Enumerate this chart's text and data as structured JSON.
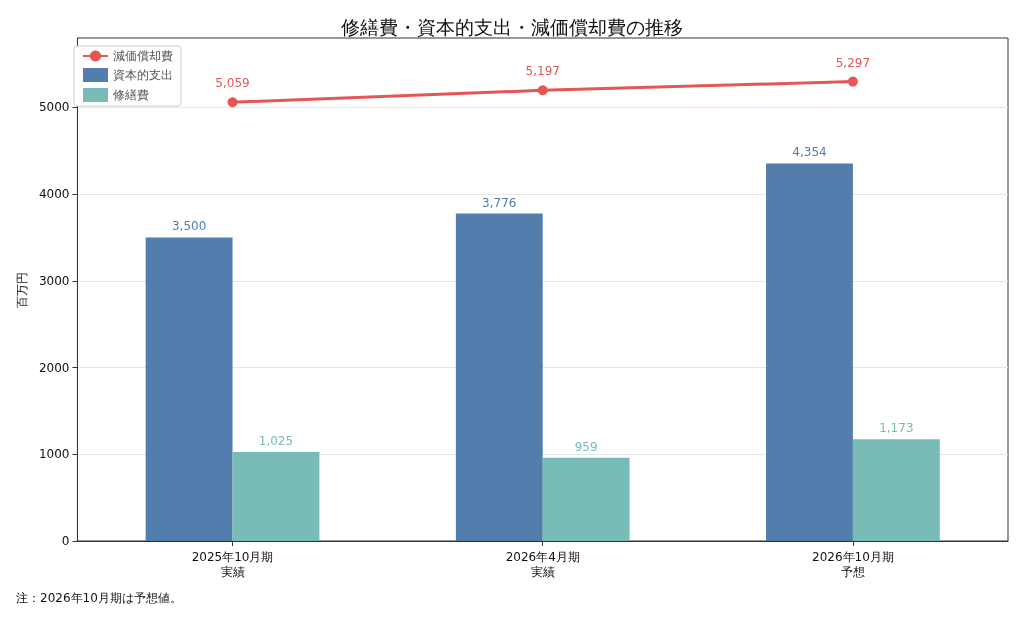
{
  "chart_data": {
    "type": "bar",
    "title": "修繕費・資本的支出・減価償却費の推移",
    "ylabel": "百万円",
    "categories": [
      "2025年10月期実績",
      "2026年4月期実績",
      "2026年10月期予想"
    ],
    "series": [
      {
        "name": "減価償却費",
        "type": "line",
        "color": "#e45756",
        "values": [
          5059,
          5197,
          5297
        ],
        "value_labels": [
          "5,059",
          "5,197",
          "5,297"
        ]
      },
      {
        "name": "資本的支出",
        "color": "#4a76a8",
        "values": [
          3500,
          3776,
          4354
        ],
        "value_labels": [
          "3,500",
          "3,776",
          "4,354"
        ]
      },
      {
        "name": "修繕費",
        "color": "#72b7b2",
        "values": [
          1025,
          959,
          1173
        ],
        "value_labels": [
          "1,025",
          "959",
          "1,173"
        ]
      }
    ],
    "ylim": [
      0,
      5800
    ],
    "yticks": [
      0,
      1000,
      2000,
      3000,
      4000,
      5000
    ],
    "grid": "y",
    "legend": "top left",
    "marker": "circle",
    "annotations": [
      "注：2026年10月期は予想値。"
    ]
  }
}
